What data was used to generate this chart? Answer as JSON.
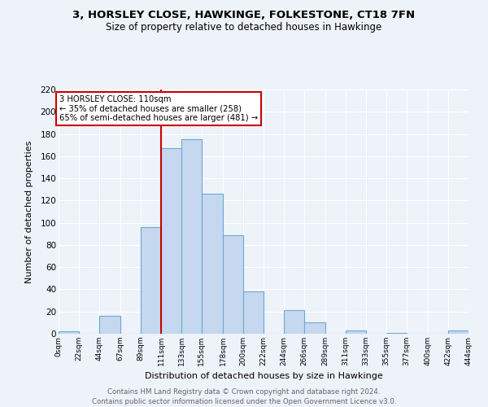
{
  "title": "3, HORSLEY CLOSE, HAWKINGE, FOLKESTONE, CT18 7FN",
  "subtitle": "Size of property relative to detached houses in Hawkinge",
  "xlabel": "Distribution of detached houses by size in Hawkinge",
  "ylabel": "Number of detached properties",
  "bin_edges": [
    0,
    22,
    44,
    67,
    89,
    111,
    133,
    155,
    178,
    200,
    222,
    244,
    266,
    289,
    311,
    333,
    355,
    377,
    400,
    422,
    444
  ],
  "bin_labels": [
    "0sqm",
    "22sqm",
    "44sqm",
    "67sqm",
    "89sqm",
    "111sqm",
    "133sqm",
    "155sqm",
    "178sqm",
    "200sqm",
    "222sqm",
    "244sqm",
    "266sqm",
    "289sqm",
    "311sqm",
    "333sqm",
    "355sqm",
    "377sqm",
    "400sqm",
    "422sqm",
    "444sqm"
  ],
  "counts": [
    2,
    0,
    16,
    0,
    96,
    167,
    175,
    126,
    89,
    38,
    0,
    21,
    10,
    0,
    3,
    0,
    1,
    0,
    0,
    3
  ],
  "bar_color": "#c5d8ef",
  "bar_edge_color": "#6aaad4",
  "vline_x": 111,
  "vline_color": "#cc0000",
  "annotation_title": "3 HORSLEY CLOSE: 110sqm",
  "annotation_line1": "← 35% of detached houses are smaller (258)",
  "annotation_line2": "65% of semi-detached houses are larger (481) →",
  "annotation_box_color": "#ffffff",
  "annotation_box_edge": "#cc0000",
  "ylim": [
    0,
    220
  ],
  "yticks": [
    0,
    20,
    40,
    60,
    80,
    100,
    120,
    140,
    160,
    180,
    200,
    220
  ],
  "footer1": "Contains HM Land Registry data © Crown copyright and database right 2024.",
  "footer2": "Contains public sector information licensed under the Open Government Licence v3.0.",
  "bg_color": "#eef2f9"
}
